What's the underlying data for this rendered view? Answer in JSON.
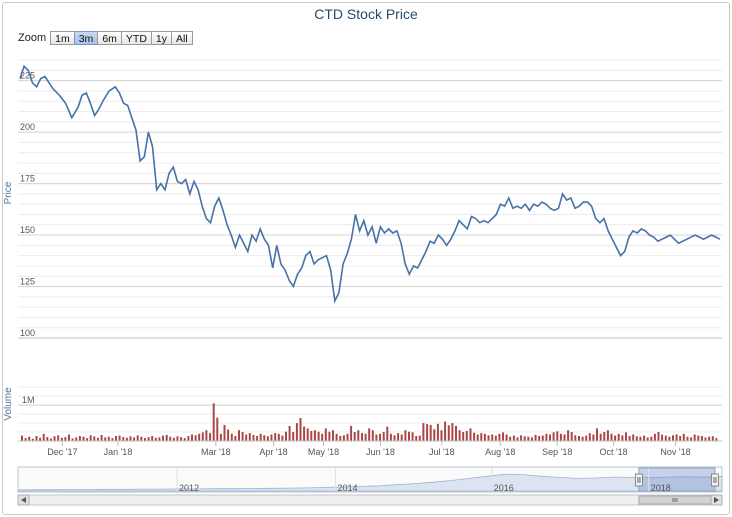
{
  "chart_data": {
    "type": "line",
    "title": "CTD Stock Price",
    "zoom": {
      "label": "Zoom",
      "buttons": [
        "1m",
        "3m",
        "6m",
        "YTD",
        "1y",
        "All"
      ],
      "active": "3m"
    },
    "price": {
      "ylabel": "Price",
      "ylim": [
        100,
        236
      ],
      "yticks": [
        100,
        125,
        150,
        175,
        200,
        225
      ],
      "color": "#4572a7",
      "x": [
        0,
        2,
        4,
        6,
        8,
        10,
        12,
        14,
        16,
        19,
        22,
        25,
        28,
        30,
        32,
        34,
        36,
        38,
        40,
        43,
        46,
        48,
        50,
        52,
        54,
        56,
        58,
        60,
        62,
        64,
        66,
        68,
        70,
        72,
        74,
        76,
        78,
        80,
        82,
        84,
        86,
        88,
        90,
        92,
        94,
        96,
        98,
        100,
        102,
        104,
        106,
        108,
        110,
        112,
        114,
        116,
        118,
        120,
        122,
        124,
        126,
        128,
        130,
        132,
        134,
        136,
        138,
        140,
        142,
        144,
        146,
        148,
        150,
        152,
        154,
        156,
        158,
        160,
        162,
        164,
        166,
        168,
        170,
        172,
        174,
        176,
        178,
        180,
        182,
        184,
        186,
        188,
        190,
        192,
        194,
        196,
        198,
        200,
        202,
        204,
        206,
        208,
        210,
        212,
        214,
        216,
        218,
        220,
        222,
        224,
        226,
        228,
        230,
        232,
        234,
        236,
        238,
        240,
        242,
        244,
        246,
        248,
        250,
        252,
        254,
        256,
        258,
        260,
        262,
        264,
        266,
        268,
        270,
        272,
        274,
        276,
        278,
        280,
        282,
        284,
        286,
        288,
        290,
        292,
        294,
        296,
        298,
        300,
        302,
        304,
        306,
        308,
        310,
        312,
        314,
        316,
        318,
        320,
        322,
        324,
        326,
        328,
        330,
        332,
        334,
        336,
        338
      ],
      "values": [
        226,
        232,
        230,
        224,
        222,
        226,
        227,
        224,
        221,
        218,
        214,
        207,
        212,
        218,
        219,
        214,
        208,
        211,
        215,
        220,
        222,
        219,
        214,
        213,
        207,
        201,
        186,
        188,
        200,
        193,
        172,
        175,
        172,
        180,
        183,
        176,
        175,
        177,
        170,
        176,
        172,
        164,
        158,
        156,
        164,
        168,
        162,
        155,
        150,
        144,
        150,
        146,
        142,
        150,
        147,
        153,
        148,
        145,
        134,
        145,
        136,
        133,
        128,
        125,
        131,
        134,
        140,
        142,
        136,
        138,
        139,
        140,
        133,
        118,
        122,
        136,
        141,
        148,
        160,
        152,
        157,
        150,
        154,
        146,
        154,
        151,
        153,
        151,
        152,
        146,
        136,
        131,
        135,
        134,
        138,
        142,
        147,
        146,
        150,
        148,
        145,
        148,
        152,
        157,
        155,
        153,
        159,
        158,
        156,
        157,
        156,
        158,
        160,
        165,
        164,
        168,
        163,
        164,
        163,
        165,
        162,
        165,
        164,
        166,
        165,
        163,
        162,
        163,
        170,
        167,
        168,
        163,
        164,
        166,
        166,
        164,
        158,
        156,
        158,
        152,
        148,
        144,
        140,
        142,
        149,
        152,
        151,
        153,
        152,
        150,
        149,
        147,
        148,
        149,
        150,
        148,
        146,
        147,
        148,
        149,
        150,
        149,
        148,
        149,
        150,
        149,
        148
      ]
    },
    "volume": {
      "ylabel": "Volume",
      "tick_label": "1M",
      "ylim": [
        0,
        1700000
      ],
      "color": "#aa4643",
      "values": [
        150000,
        80000,
        120000,
        60000,
        140000,
        90000,
        200000,
        110000,
        70000,
        130000,
        160000,
        90000,
        110000,
        180000,
        70000,
        100000,
        140000,
        120000,
        80000,
        160000,
        130000,
        90000,
        170000,
        100000,
        120000,
        80000,
        140000,
        150000,
        110000,
        90000,
        130000,
        100000,
        160000,
        120000,
        80000,
        110000,
        140000,
        90000,
        100000,
        150000,
        170000,
        120000,
        90000,
        130000,
        110000,
        80000,
        140000,
        180000,
        160000,
        200000,
        240000,
        300000,
        220000,
        1050000,
        650000,
        200000,
        450000,
        320000,
        200000,
        140000,
        300000,
        250000,
        180000,
        220000,
        170000,
        140000,
        200000,
        160000,
        130000,
        180000,
        220000,
        200000,
        150000,
        260000,
        420000,
        250000,
        500000,
        640000,
        400000,
        350000,
        280000,
        300000,
        260000,
        200000,
        350000,
        260000,
        300000,
        200000,
        140000,
        160000,
        200000,
        420000,
        250000,
        300000,
        220000,
        200000,
        350000,
        300000,
        180000,
        200000,
        250000,
        400000,
        200000,
        160000,
        220000,
        180000,
        300000,
        260000,
        240000,
        140000,
        150000,
        500000,
        470000,
        450000,
        330000,
        480000,
        300000,
        540000,
        440000,
        500000,
        420000,
        300000,
        250000,
        280000,
        350000,
        230000,
        180000,
        220000,
        200000,
        160000,
        180000,
        150000,
        200000,
        240000,
        180000,
        120000,
        150000,
        100000,
        160000,
        130000,
        120000,
        100000,
        170000,
        140000,
        150000,
        200000,
        180000,
        240000,
        270000,
        200000,
        180000,
        300000,
        250000,
        160000,
        140000,
        120000,
        150000,
        220000,
        180000,
        350000,
        200000,
        250000,
        300000,
        200000,
        150000,
        200000,
        160000,
        240000,
        140000,
        180000,
        130000,
        120000,
        150000,
        100000,
        120000,
        200000,
        250000,
        180000,
        150000,
        120000,
        160000,
        180000,
        140000,
        200000,
        120000,
        100000,
        180000,
        150000,
        140000,
        100000,
        120000,
        130000,
        80000
      ]
    },
    "xaxis": {
      "labels": [
        {
          "text": "Dec '17",
          "pos": 0.063
        },
        {
          "text": "Jan '18",
          "pos": 0.142
        },
        {
          "text": "Mar '18",
          "pos": 0.281
        },
        {
          "text": "Apr '18",
          "pos": 0.363
        },
        {
          "text": "May '18",
          "pos": 0.434
        },
        {
          "text": "Jun '18",
          "pos": 0.515
        },
        {
          "text": "Jul '18",
          "pos": 0.602
        },
        {
          "text": "Aug '18",
          "pos": 0.685
        },
        {
          "text": "Sep '18",
          "pos": 0.766
        },
        {
          "text": "Oct '18",
          "pos": 0.846
        },
        {
          "text": "Nov '18",
          "pos": 0.934
        }
      ]
    },
    "navigator": {
      "labels": [
        {
          "text": "2012",
          "pos": 0.243
        },
        {
          "text": "2014",
          "pos": 0.468
        },
        {
          "text": "2016",
          "pos": 0.69
        },
        {
          "text": "2018",
          "pos": 0.913
        }
      ],
      "selected_range": [
        0.882,
        0.99
      ],
      "overview": [
        0.05,
        0.06,
        0.06,
        0.07,
        0.07,
        0.08,
        0.08,
        0.09,
        0.09,
        0.1,
        0.1,
        0.11,
        0.11,
        0.12,
        0.13,
        0.14,
        0.15,
        0.17,
        0.19,
        0.22,
        0.25,
        0.3,
        0.35,
        0.42,
        0.5,
        0.6,
        0.7,
        0.8,
        0.78,
        0.7,
        0.65,
        0.6,
        0.62,
        0.66,
        0.65,
        0.64,
        0.66,
        0.68,
        0.66,
        0.7
      ]
    }
  }
}
